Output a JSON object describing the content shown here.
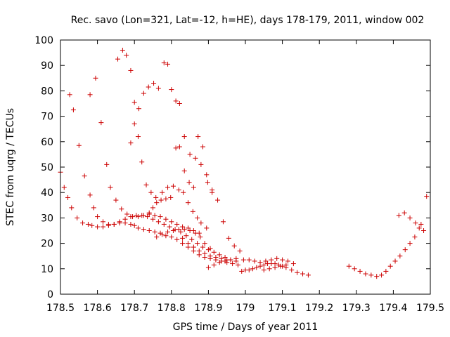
{
  "colors": {
    "series": "#cc0000",
    "frame": "#000000",
    "background": "#ffffff"
  },
  "chart_data": {
    "type": "scatter",
    "title": "Rec. savo (Lon=321, Lat=-12, h=HE), days 178-179, 2011, window 002",
    "xlabel": "GPS time / Days of year 2011",
    "ylabel": "STEC from uqrg / TECUs",
    "xlim": [
      178.5,
      179.5
    ],
    "ylim": [
      0,
      100
    ],
    "x_ticks": [
      "178.5",
      "178.6",
      "178.7",
      "178.8",
      "178.9",
      "179",
      "179.1",
      "179.2",
      "179.3",
      "179.4",
      "179.5"
    ],
    "y_ticks": [
      "0",
      "10",
      "20",
      "30",
      "40",
      "50",
      "60",
      "70",
      "80",
      "90",
      "100"
    ],
    "grid": false,
    "legend": "none",
    "marker": "plus",
    "series": [
      {
        "points": [
          [
            178.5,
            48.0
          ],
          [
            178.51,
            42.0
          ],
          [
            178.52,
            38.0
          ],
          [
            178.53,
            34.0
          ],
          [
            178.545,
            30.0
          ],
          [
            178.56,
            28.0
          ],
          [
            178.575,
            27.5
          ],
          [
            178.585,
            27.0
          ],
          [
            178.6,
            26.5
          ],
          [
            178.615,
            26.5
          ],
          [
            178.63,
            27.0
          ],
          [
            178.645,
            27.5
          ],
          [
            178.66,
            28.0
          ],
          [
            178.675,
            28.0
          ],
          [
            178.69,
            27.5
          ],
          [
            178.7,
            27.0
          ],
          [
            178.71,
            26.0
          ],
          [
            178.725,
            25.5
          ],
          [
            178.74,
            25.0
          ],
          [
            178.755,
            24.5
          ],
          [
            178.77,
            24.0
          ],
          [
            178.785,
            23.0
          ],
          [
            178.8,
            22.5
          ],
          [
            178.815,
            21.5
          ],
          [
            178.83,
            20.0
          ],
          [
            178.845,
            18.5
          ],
          [
            178.86,
            17.0
          ],
          [
            178.875,
            15.5
          ],
          [
            178.89,
            14.5
          ],
          [
            178.905,
            14.0
          ],
          [
            178.92,
            13.5
          ],
          [
            178.935,
            13.0
          ],
          [
            178.95,
            12.5
          ],
          [
            178.965,
            12.0
          ],
          [
            178.98,
            11.5
          ],
          [
            178.525,
            78.5
          ],
          [
            178.535,
            72.5
          ],
          [
            178.55,
            58.5
          ],
          [
            178.565,
            46.5
          ],
          [
            178.58,
            39.0
          ],
          [
            178.59,
            34.0
          ],
          [
            178.6,
            30.5
          ],
          [
            178.615,
            28.5
          ],
          [
            178.63,
            27.5
          ],
          [
            178.645,
            27.5
          ],
          [
            178.66,
            28.5
          ],
          [
            178.675,
            29.5
          ],
          [
            178.69,
            30.5
          ],
          [
            178.705,
            31.0
          ],
          [
            178.72,
            31.0
          ],
          [
            178.735,
            30.5
          ],
          [
            178.75,
            29.5
          ],
          [
            178.765,
            28.5
          ],
          [
            178.78,
            27.5
          ],
          [
            178.795,
            26.5
          ],
          [
            178.81,
            25.5
          ],
          [
            178.825,
            24.5
          ],
          [
            178.84,
            23.0
          ],
          [
            178.855,
            21.5
          ],
          [
            178.87,
            20.0
          ],
          [
            178.885,
            18.5
          ],
          [
            178.9,
            17.5
          ],
          [
            178.915,
            16.5
          ],
          [
            178.93,
            15.5
          ],
          [
            178.945,
            14.5
          ],
          [
            178.96,
            13.5
          ],
          [
            178.975,
            13.0
          ],
          [
            178.58,
            78.5
          ],
          [
            178.595,
            85.0
          ],
          [
            178.61,
            67.5
          ],
          [
            178.625,
            51.0
          ],
          [
            178.635,
            42.0
          ],
          [
            178.65,
            37.0
          ],
          [
            178.665,
            33.5
          ],
          [
            178.68,
            31.5
          ],
          [
            178.695,
            30.5
          ],
          [
            178.71,
            30.5
          ],
          [
            178.725,
            31.0
          ],
          [
            178.74,
            31.5
          ],
          [
            178.755,
            31.0
          ],
          [
            178.77,
            30.5
          ],
          [
            178.785,
            29.5
          ],
          [
            178.8,
            28.5
          ],
          [
            178.815,
            27.5
          ],
          [
            178.83,
            26.5
          ],
          [
            178.845,
            26.0
          ],
          [
            178.86,
            25.0
          ],
          [
            178.875,
            24.0
          ],
          [
            178.655,
            92.5
          ],
          [
            178.668,
            96.0
          ],
          [
            178.678,
            94.0
          ],
          [
            178.69,
            88.0
          ],
          [
            178.7,
            75.5
          ],
          [
            178.712,
            73.0
          ],
          [
            178.725,
            79.0
          ],
          [
            178.738,
            81.5
          ],
          [
            178.752,
            83.0
          ],
          [
            178.765,
            81.0
          ],
          [
            178.78,
            91.0
          ],
          [
            178.79,
            90.5
          ],
          [
            178.8,
            80.5
          ],
          [
            178.812,
            76.0
          ],
          [
            178.822,
            75.0
          ],
          [
            178.835,
            62.0
          ],
          [
            178.85,
            55.0
          ],
          [
            178.865,
            53.5
          ],
          [
            178.88,
            51.0
          ],
          [
            178.895,
            47.0
          ],
          [
            178.91,
            41.0
          ],
          [
            178.925,
            37.0
          ],
          [
            178.94,
            28.5
          ],
          [
            178.955,
            22.0
          ],
          [
            178.97,
            19.0
          ],
          [
            178.985,
            17.0
          ],
          [
            178.69,
            59.5
          ],
          [
            178.7,
            67.0
          ],
          [
            178.71,
            62.0
          ],
          [
            178.72,
            52.0
          ],
          [
            178.732,
            43.0
          ],
          [
            178.745,
            40.0
          ],
          [
            178.758,
            38.0
          ],
          [
            178.772,
            37.0
          ],
          [
            178.785,
            37.5
          ],
          [
            178.798,
            38.0
          ],
          [
            178.812,
            57.5
          ],
          [
            178.822,
            58.0
          ],
          [
            178.835,
            48.5
          ],
          [
            178.848,
            44.0
          ],
          [
            178.86,
            42.0
          ],
          [
            178.872,
            62.0
          ],
          [
            178.885,
            58.0
          ],
          [
            178.898,
            44.0
          ],
          [
            178.91,
            40.0
          ],
          [
            178.74,
            32.0
          ],
          [
            178.75,
            34.0
          ],
          [
            178.76,
            36.0
          ],
          [
            178.775,
            40.0
          ],
          [
            178.79,
            42.0
          ],
          [
            178.805,
            42.5
          ],
          [
            178.82,
            41.0
          ],
          [
            178.832,
            40.0
          ],
          [
            178.845,
            36.0
          ],
          [
            178.858,
            32.5
          ],
          [
            178.87,
            30.0
          ],
          [
            178.88,
            28.0
          ],
          [
            178.895,
            26.0
          ],
          [
            178.76,
            22.5
          ],
          [
            178.775,
            23.5
          ],
          [
            178.79,
            24.5
          ],
          [
            178.805,
            25.0
          ],
          [
            178.82,
            25.5
          ],
          [
            178.835,
            25.5
          ],
          [
            178.85,
            25.0
          ],
          [
            178.865,
            24.0
          ],
          [
            178.878,
            22.5
          ],
          [
            178.89,
            20.0
          ],
          [
            178.905,
            18.0
          ],
          [
            178.83,
            22.0
          ],
          [
            178.845,
            20.0
          ],
          [
            178.86,
            18.5
          ],
          [
            178.875,
            17.0
          ],
          [
            178.89,
            16.0
          ],
          [
            178.905,
            15.0
          ],
          [
            178.92,
            14.5
          ],
          [
            178.935,
            14.0
          ],
          [
            178.95,
            13.5
          ],
          [
            178.9,
            10.5
          ],
          [
            178.915,
            11.5
          ],
          [
            178.93,
            12.5
          ],
          [
            178.945,
            13.0
          ],
          [
            178.96,
            13.5
          ],
          [
            178.975,
            14.0
          ],
          [
            178.99,
            9.0
          ],
          [
            179.0,
            9.5
          ],
          [
            179.01,
            9.5
          ],
          [
            179.02,
            10.0
          ],
          [
            179.03,
            10.5
          ],
          [
            179.04,
            11.0
          ],
          [
            179.05,
            11.5
          ],
          [
            179.06,
            12.0
          ],
          [
            179.07,
            12.0
          ],
          [
            179.08,
            12.0
          ],
          [
            179.09,
            11.5
          ],
          [
            179.1,
            11.0
          ],
          [
            179.11,
            10.5
          ],
          [
            179.125,
            9.5
          ],
          [
            179.14,
            8.5
          ],
          [
            179.155,
            8.0
          ],
          [
            179.17,
            7.5
          ],
          [
            178.995,
            13.5
          ],
          [
            179.01,
            13.5
          ],
          [
            179.025,
            13.0
          ],
          [
            179.04,
            12.5
          ],
          [
            179.055,
            13.0
          ],
          [
            179.07,
            13.5
          ],
          [
            179.085,
            14.0
          ],
          [
            179.1,
            13.5
          ],
          [
            179.115,
            13.0
          ],
          [
            179.13,
            12.0
          ],
          [
            179.05,
            9.5
          ],
          [
            179.065,
            10.0
          ],
          [
            179.08,
            10.5
          ],
          [
            179.095,
            11.0
          ],
          [
            179.11,
            11.5
          ],
          [
            179.28,
            11.0
          ],
          [
            179.295,
            10.0
          ],
          [
            179.31,
            9.0
          ],
          [
            179.325,
            8.0
          ],
          [
            179.34,
            7.5
          ],
          [
            179.355,
            7.0
          ],
          [
            179.368,
            7.5
          ],
          [
            179.38,
            9.0
          ],
          [
            179.392,
            11.0
          ],
          [
            179.405,
            13.0
          ],
          [
            179.418,
            15.0
          ],
          [
            179.432,
            17.5
          ],
          [
            179.445,
            20.0
          ],
          [
            179.458,
            22.5
          ],
          [
            179.47,
            26.0
          ],
          [
            179.482,
            25.0
          ],
          [
            179.415,
            31.0
          ],
          [
            179.43,
            32.0
          ],
          [
            179.445,
            30.0
          ],
          [
            179.46,
            28.0
          ],
          [
            179.475,
            27.5
          ],
          [
            179.49,
            38.5
          ]
        ]
      }
    ]
  }
}
